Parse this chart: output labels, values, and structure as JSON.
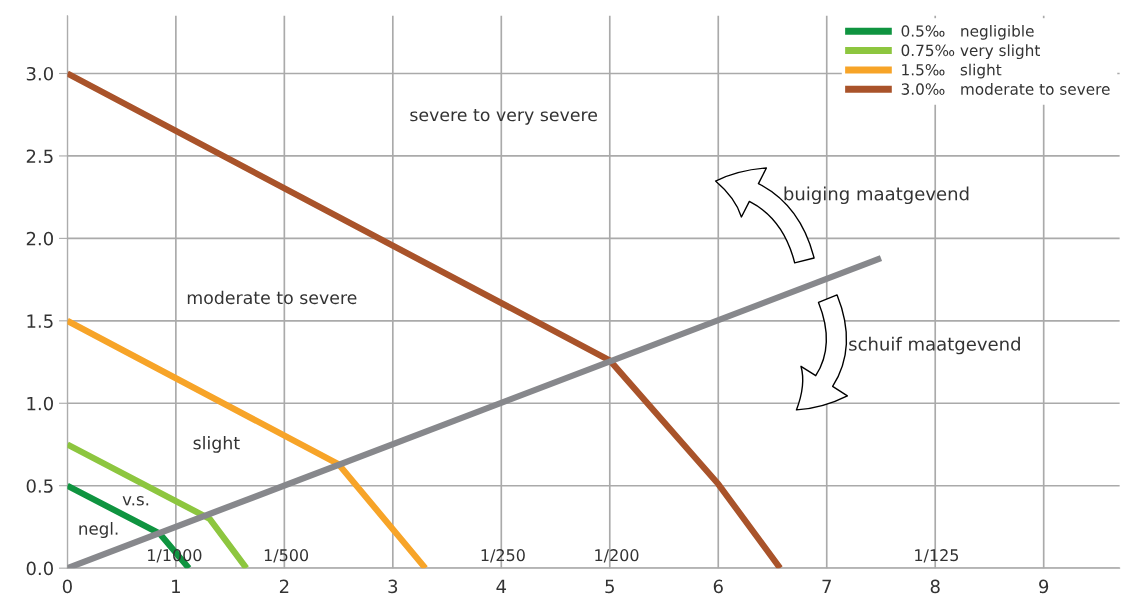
{
  "chart_data": {
    "type": "line",
    "xlim": [
      0,
      9.7
    ],
    "ylim": [
      0,
      3.35
    ],
    "xticks": [
      0,
      1,
      2,
      3,
      4,
      5,
      6,
      7,
      8,
      9
    ],
    "yticks": [
      {
        "value": 0,
        "label": "0.0"
      },
      {
        "value": 0.5,
        "label": "0.5"
      },
      {
        "value": 1,
        "label": "1.0"
      },
      {
        "value": 1.5,
        "label": "1.5"
      },
      {
        "value": 2,
        "label": "2.0"
      },
      {
        "value": 2.5,
        "label": "2.5"
      },
      {
        "value": 3,
        "label": "3.0"
      }
    ],
    "grid": true,
    "legend": "top right",
    "line_style": "solid",
    "marker": "none",
    "series": [
      {
        "name": "0.5‰   negligible",
        "color": "#0f9440",
        "x": [
          0,
          0.85,
          1.12
        ],
        "values": [
          0.5,
          0.21,
          0
        ]
      },
      {
        "name": "0.75‰ very slight",
        "color": "#8dc63f",
        "x": [
          0,
          1.31,
          1.65
        ],
        "values": [
          0.75,
          0.3,
          0
        ]
      },
      {
        "name": "1.5‰   slight",
        "color": "#f7a428",
        "x": [
          0,
          2.5,
          3.3
        ],
        "values": [
          1.5,
          0.63,
          0
        ]
      },
      {
        "name": "3.0‰   moderate to severe",
        "color": "#a9532a",
        "x": [
          0,
          5,
          6,
          6.57
        ],
        "values": [
          3.0,
          1.26,
          0.51,
          0
        ]
      },
      {
        "color": "#87888c",
        "x": [
          0,
          7.5
        ],
        "values": [
          0,
          1.88
        ]
      }
    ],
    "annotations": [
      "severe to very severe",
      "moderate to severe",
      "slight",
      "v.s.",
      "negl.",
      "1/1000",
      "1/500",
      "1/250",
      "1/200",
      "1/125",
      "buiging maatgevend",
      "schuif maatgevend"
    ]
  }
}
